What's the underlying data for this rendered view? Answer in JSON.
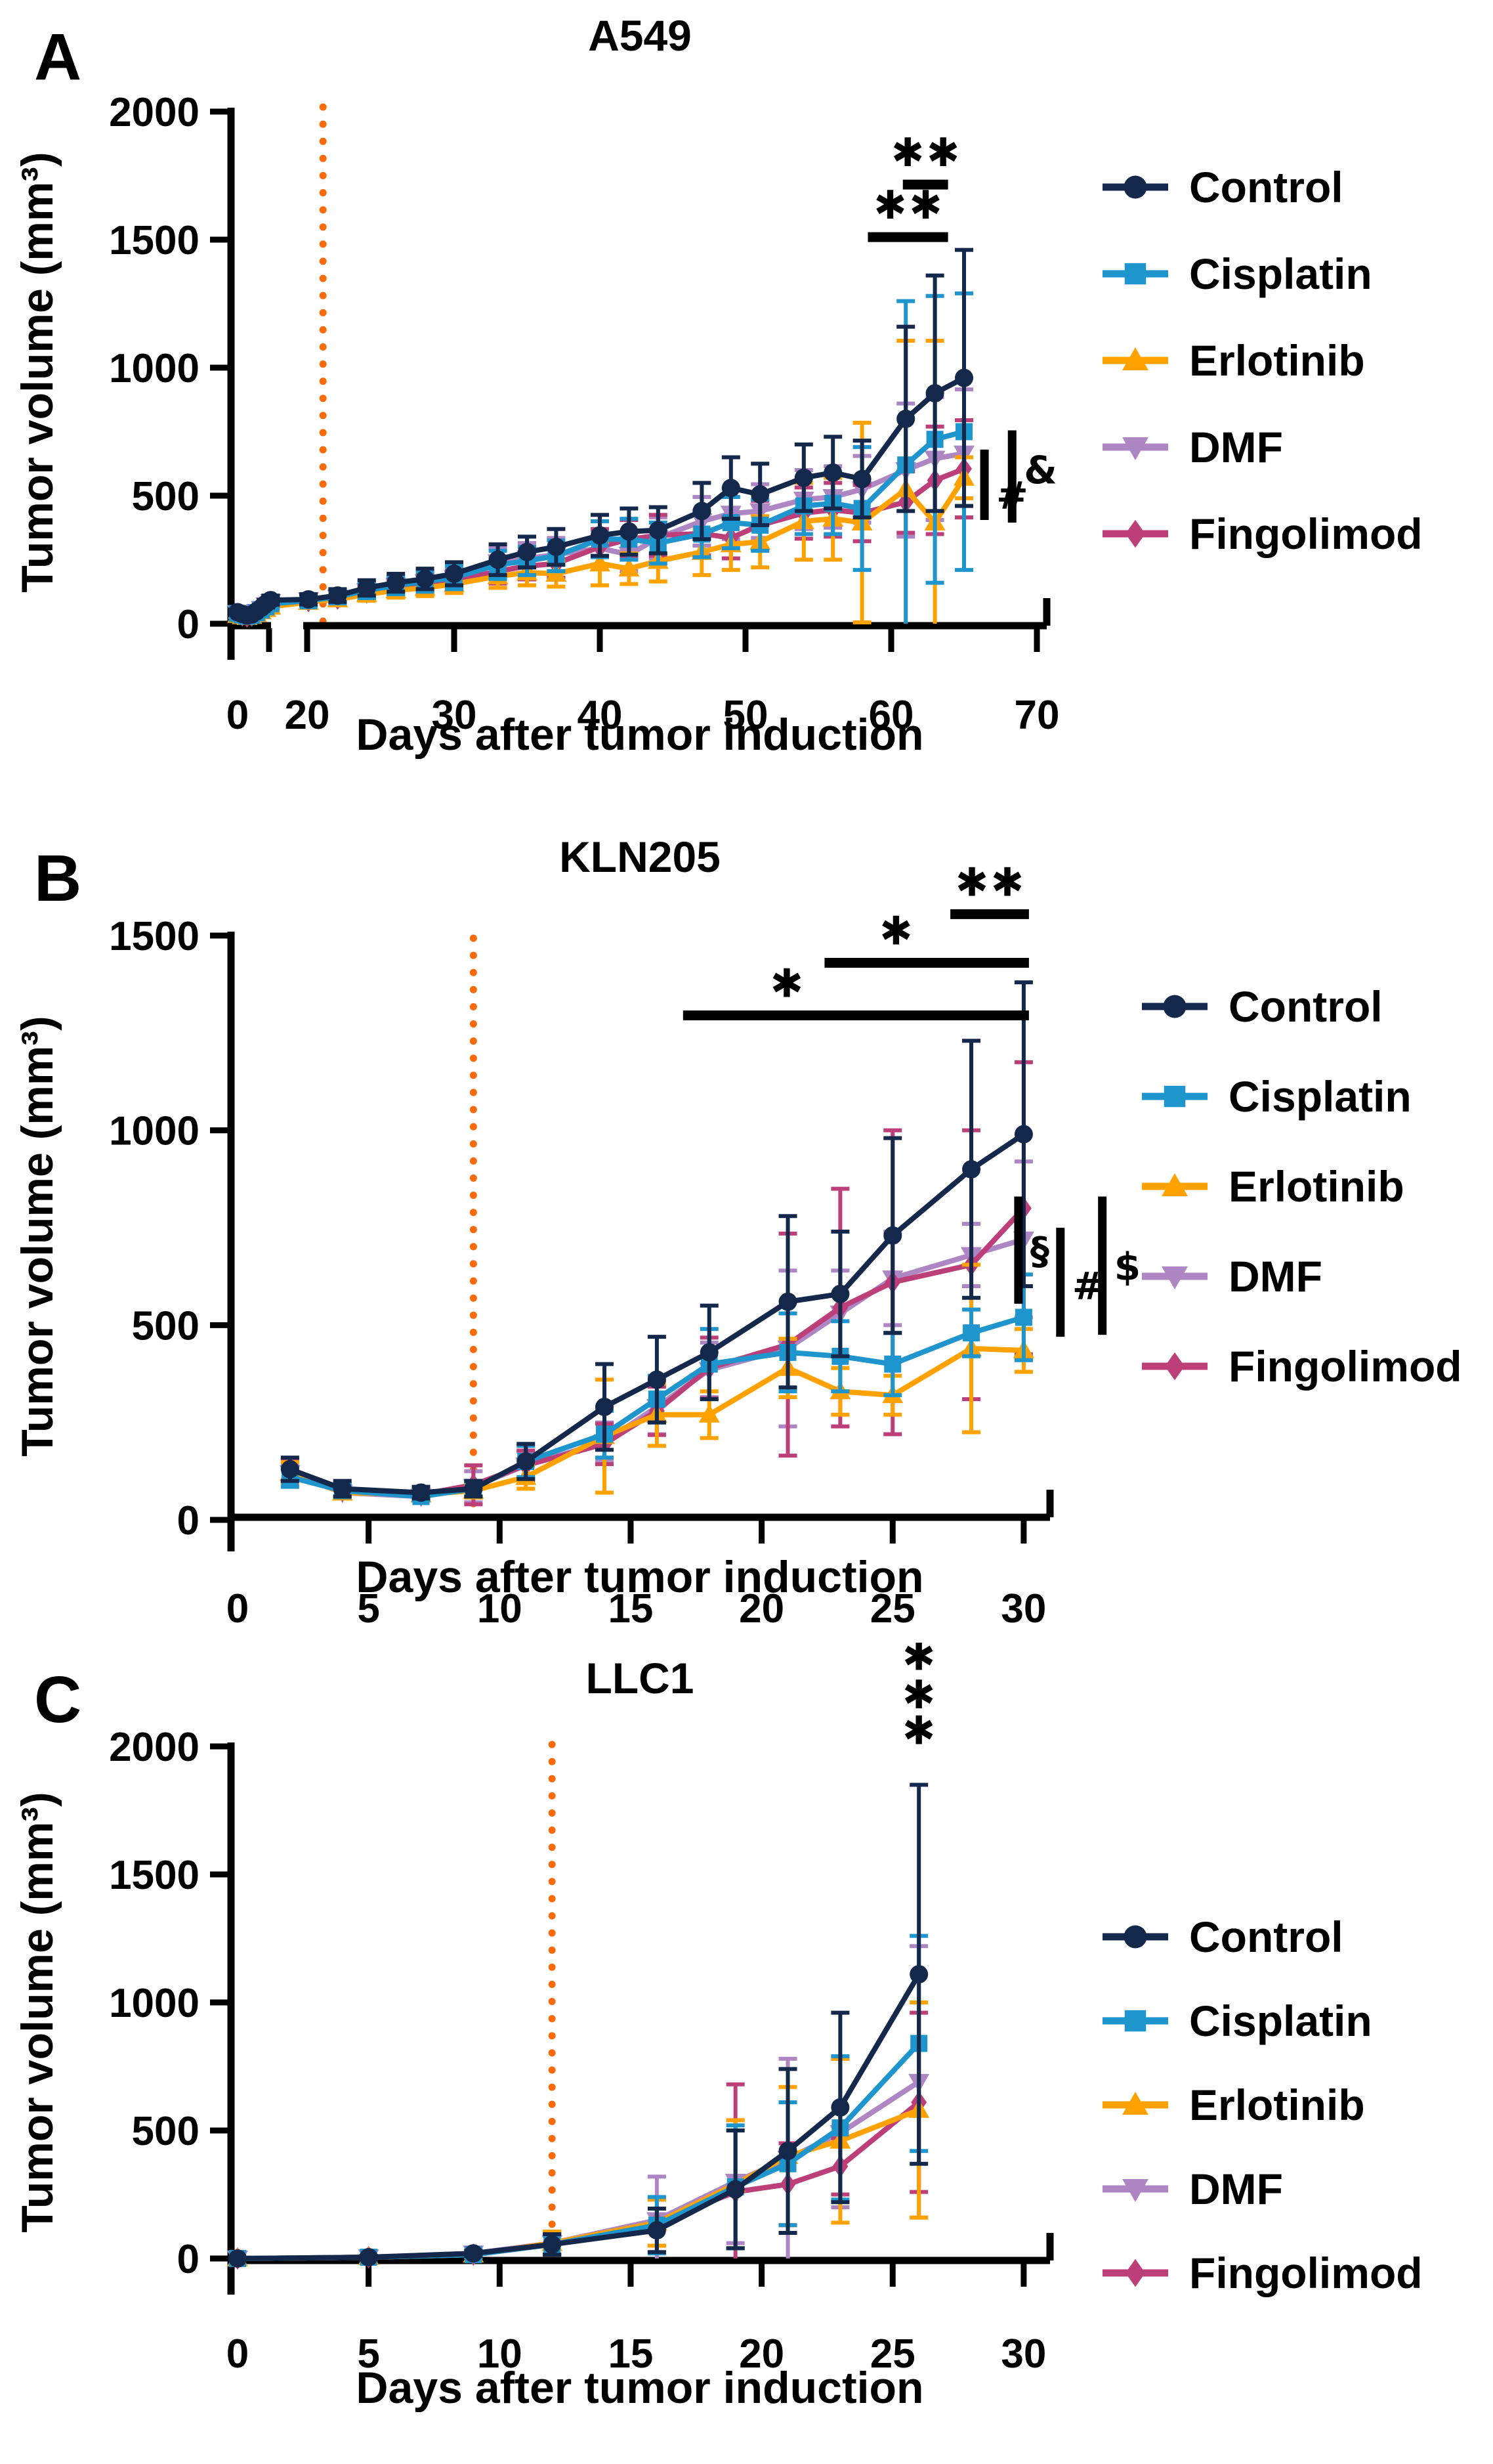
{
  "figure": {
    "star_glyph": "✱",
    "colors": {
      "Control": "#14284B",
      "Cisplatin": "#1E95CD",
      "Erlotinib": "#FFA200",
      "DMF": "#AE86C3",
      "Fingolimod": "#BC3F79",
      "treatment_line": "#FB6A0B",
      "annotation": "#000000"
    },
    "legend": [
      {
        "label": "Control",
        "marker": "circle"
      },
      {
        "label": "Cisplatin",
        "marker": "square"
      },
      {
        "label": "Erlotinib",
        "marker": "triangle-up"
      },
      {
        "label": "DMF",
        "marker": "triangle-down"
      },
      {
        "label": "Fingolimod",
        "marker": "diamond"
      }
    ]
  },
  "chart_data": [
    {
      "type": "line",
      "panel_label": "A",
      "title": "A549",
      "xlabel": "Days after tumor induction",
      "ylabel": "Tumor volume (mm³)",
      "ylim": [
        0,
        2000
      ],
      "yticks": [
        0,
        500,
        1000,
        1500,
        2000
      ],
      "xticks": [
        0,
        20,
        30,
        40,
        50,
        60,
        70
      ],
      "axis_break": {
        "after_day": 8,
        "resume_day": 20
      },
      "treatment_line_day": 21,
      "grid": false,
      "legend_position": "right",
      "series": [
        {
          "name": "Control",
          "marker": "circle",
          "x": [
            0,
            1,
            2,
            3,
            4,
            5,
            6,
            7,
            20,
            22,
            24,
            26,
            28,
            30,
            33,
            35,
            37,
            40,
            42,
            44,
            47,
            49,
            51,
            54,
            56,
            58,
            61,
            63,
            65
          ],
          "y": [
            45,
            38,
            32,
            36,
            48,
            62,
            78,
            92,
            95,
            110,
            140,
            160,
            175,
            195,
            250,
            280,
            300,
            345,
            360,
            365,
            440,
            530,
            505,
            570,
            590,
            565,
            800,
            900,
            960
          ],
          "err": [
            10,
            8,
            8,
            9,
            10,
            12,
            15,
            18,
            20,
            25,
            30,
            35,
            40,
            45,
            60,
            60,
            70,
            80,
            90,
            90,
            110,
            120,
            120,
            130,
            140,
            150,
            360,
            460,
            500
          ]
        },
        {
          "name": "Cisplatin",
          "marker": "square",
          "x": [
            0,
            1,
            2,
            3,
            4,
            5,
            6,
            7,
            20,
            22,
            24,
            26,
            28,
            30,
            33,
            35,
            37,
            40,
            42,
            44,
            47,
            49,
            51,
            54,
            56,
            58,
            61,
            63,
            65
          ],
          "y": [
            40,
            34,
            29,
            33,
            43,
            54,
            66,
            78,
            90,
            105,
            130,
            150,
            165,
            180,
            230,
            245,
            265,
            330,
            330,
            315,
            350,
            395,
            385,
            460,
            470,
            450,
            620,
            720,
            750
          ],
          "err": [
            9,
            8,
            7,
            8,
            9,
            11,
            13,
            16,
            20,
            25,
            30,
            35,
            40,
            45,
            55,
            55,
            60,
            70,
            80,
            80,
            90,
            100,
            100,
            110,
            120,
            240,
            640,
            560,
            540
          ]
        },
        {
          "name": "Erlotinib",
          "marker": "triangle-up",
          "x": [
            0,
            1,
            2,
            3,
            4,
            5,
            6,
            7,
            20,
            22,
            24,
            26,
            28,
            30,
            33,
            35,
            37,
            40,
            42,
            44,
            47,
            49,
            51,
            54,
            56,
            58,
            61,
            63,
            65
          ],
          "y": [
            34,
            29,
            26,
            30,
            38,
            48,
            57,
            66,
            85,
            95,
            115,
            130,
            140,
            155,
            185,
            200,
            195,
            235,
            215,
            245,
            280,
            310,
            320,
            400,
            410,
            395,
            525,
            395,
            570
          ],
          "err": [
            8,
            7,
            6,
            7,
            8,
            10,
            12,
            14,
            18,
            22,
            25,
            28,
            32,
            35,
            45,
            50,
            50,
            85,
            60,
            80,
            90,
            100,
            100,
            150,
            160,
            390,
            580,
            710,
            80
          ]
        },
        {
          "name": "DMF",
          "marker": "triangle-down",
          "x": [
            0,
            1,
            2,
            3,
            4,
            5,
            6,
            7,
            20,
            22,
            24,
            26,
            28,
            30,
            33,
            35,
            37,
            40,
            42,
            44,
            47,
            49,
            51,
            54,
            56,
            58,
            61,
            63,
            65
          ],
          "y": [
            42,
            36,
            30,
            35,
            46,
            58,
            72,
            85,
            92,
            102,
            128,
            148,
            162,
            178,
            240,
            255,
            270,
            295,
            270,
            335,
            400,
            430,
            440,
            485,
            495,
            525,
            600,
            645,
            665
          ],
          "err": [
            9,
            8,
            7,
            8,
            9,
            11,
            14,
            17,
            20,
            22,
            28,
            32,
            36,
            40,
            55,
            60,
            65,
            70,
            65,
            80,
            95,
            100,
            105,
            115,
            120,
            130,
            260,
            240,
            250
          ]
        },
        {
          "name": "Fingolimod",
          "marker": "diamond",
          "x": [
            0,
            1,
            2,
            3,
            4,
            5,
            6,
            7,
            20,
            22,
            24,
            26,
            28,
            30,
            33,
            35,
            37,
            40,
            42,
            44,
            47,
            49,
            51,
            54,
            56,
            58,
            61,
            63,
            65
          ],
          "y": [
            38,
            32,
            28,
            31,
            41,
            51,
            62,
            73,
            88,
            98,
            122,
            142,
            158,
            168,
            205,
            225,
            235,
            300,
            330,
            345,
            352,
            335,
            385,
            432,
            445,
            432,
            475,
            560,
            605
          ],
          "err": [
            8,
            7,
            6,
            7,
            8,
            10,
            12,
            15,
            18,
            22,
            26,
            30,
            34,
            38,
            48,
            52,
            55,
            70,
            75,
            80,
            85,
            80,
            95,
            100,
            105,
            110,
            120,
            210,
            190
          ]
        }
      ],
      "significance": {
        "brackets": [
          {
            "x1": 60.8,
            "x2": 63.9,
            "y": 1715,
            "stars": [
              "Cisplatin",
              "DMF"
            ],
            "star_frac": 0.5
          },
          {
            "x1": 58.4,
            "x2": 63.9,
            "y": 1510,
            "stars": [
              "Erlotinib",
              "Fingolimod"
            ],
            "star_frac": 0.5
          }
        ],
        "side_bars": [
          {
            "symbol": "#",
            "x": 66.4,
            "y1": 405,
            "y2": 680,
            "label_y": 500
          },
          {
            "symbol": "&",
            "x": 68.3,
            "y1": 395,
            "y2": 755,
            "label_y": 600
          }
        ],
        "star_stack": null
      }
    },
    {
      "type": "line",
      "panel_label": "B",
      "title": "KLN205",
      "xlabel": "Days after tumor induction",
      "ylabel": "Tumor volume (mm³)",
      "ylim": [
        0,
        1500
      ],
      "yticks": [
        0,
        500,
        1000,
        1500
      ],
      "xticks": [
        0,
        5,
        10,
        15,
        20,
        25,
        30
      ],
      "axis_break": null,
      "treatment_line_day": 9,
      "grid": false,
      "legend_position": "right",
      "series": [
        {
          "name": "Control",
          "marker": "circle",
          "x": [
            2,
            4,
            7,
            9,
            11,
            14,
            16,
            18,
            21,
            23,
            25,
            28,
            30
          ],
          "y": [
            130,
            80,
            70,
            80,
            150,
            290,
            360,
            430,
            560,
            580,
            730,
            900,
            990
          ],
          "err": [
            30,
            20,
            15,
            20,
            45,
            110,
            110,
            120,
            220,
            160,
            250,
            330,
            390
          ]
        },
        {
          "name": "Cisplatin",
          "marker": "square",
          "x": [
            2,
            4,
            7,
            9,
            11,
            14,
            16,
            18,
            21,
            23,
            25,
            28,
            30
          ],
          "y": [
            110,
            75,
            60,
            80,
            150,
            220,
            310,
            400,
            430,
            420,
            400,
            480,
            520
          ],
          "err": [
            25,
            15,
            10,
            20,
            40,
            60,
            60,
            90,
            100,
            90,
            80,
            60,
            110
          ]
        },
        {
          "name": "Erlotinib",
          "marker": "triangle-up",
          "x": [
            2,
            4,
            7,
            9,
            11,
            14,
            16,
            18,
            21,
            23,
            25,
            28,
            30
          ],
          "y": [
            120,
            70,
            65,
            75,
            110,
            215,
            270,
            270,
            390,
            330,
            320,
            440,
            435
          ],
          "err": [
            28,
            15,
            12,
            18,
            30,
            145,
            80,
            60,
            75,
            60,
            50,
            215,
            55
          ]
        },
        {
          "name": "DMF",
          "marker": "triangle-down",
          "x": [
            2,
            4,
            7,
            9,
            11,
            14,
            16,
            18,
            21,
            23,
            25,
            28,
            30
          ],
          "y": [
            120,
            70,
            60,
            85,
            140,
            200,
            290,
            385,
            440,
            530,
            620,
            680,
            720
          ],
          "err": [
            25,
            15,
            10,
            40,
            35,
            50,
            70,
            70,
            200,
            110,
            120,
            80,
            200
          ]
        },
        {
          "name": "Fingolimod",
          "marker": "diamond",
          "x": [
            2,
            4,
            7,
            9,
            11,
            14,
            16,
            18,
            21,
            23,
            25,
            28,
            30
          ],
          "y": [
            125,
            75,
            65,
            90,
            140,
            195,
            280,
            390,
            450,
            545,
            610,
            655,
            800
          ],
          "err": [
            30,
            18,
            12,
            50,
            38,
            52,
            62,
            78,
            285,
            305,
            390,
            345,
            375
          ]
        }
      ],
      "significance": {
        "brackets": [
          {
            "x1": 27.2,
            "x2": 30.2,
            "y": 1555,
            "stars": [
              "DMF",
              "Fingolimod"
            ],
            "star_frac": 0.5
          },
          {
            "x1": 22.4,
            "x2": 30.2,
            "y": 1430,
            "stars": [
              "Cisplatin"
            ],
            "star_frac": 0.35
          },
          {
            "x1": 17.0,
            "x2": 30.2,
            "y": 1295,
            "stars": [
              "Erlotinib"
            ],
            "star_frac": 0.3
          }
        ],
        "side_bars": [
          {
            "symbol": "§",
            "x": 29.8,
            "y1": 555,
            "y2": 830,
            "label_y": 690
          },
          {
            "symbol": "#",
            "x": 31.4,
            "y1": 470,
            "y2": 750,
            "label_y": 600
          },
          {
            "symbol": "$",
            "x": 33.0,
            "y1": 475,
            "y2": 830,
            "label_y": 650
          }
        ],
        "star_stack": null
      }
    },
    {
      "type": "line",
      "panel_label": "C",
      "title": "LLC1",
      "xlabel": "Days after tumor induction",
      "ylabel": "Tumor volume (mm³)",
      "ylim": [
        0,
        2000
      ],
      "yticks": [
        0,
        500,
        1000,
        1500,
        2000
      ],
      "xticks": [
        0,
        5,
        10,
        15,
        20,
        25,
        30
      ],
      "axis_break": null,
      "treatment_line_day": 12,
      "grid": false,
      "legend_position": "right",
      "series": [
        {
          "name": "Control",
          "marker": "circle",
          "x": [
            0,
            5,
            9,
            12,
            16,
            19,
            21,
            23,
            26
          ],
          "y": [
            0,
            5,
            20,
            55,
            110,
            270,
            420,
            590,
            1110
          ],
          "err": [
            0,
            5,
            10,
            40,
            85,
            230,
            320,
            370,
            740
          ]
        },
        {
          "name": "Cisplatin",
          "marker": "square",
          "x": [
            0,
            5,
            9,
            12,
            16,
            19,
            21,
            23,
            26
          ],
          "y": [
            0,
            5,
            15,
            55,
            130,
            280,
            370,
            510,
            840
          ],
          "err": [
            0,
            5,
            10,
            40,
            110,
            240,
            240,
            280,
            420
          ]
        },
        {
          "name": "Erlotinib",
          "marker": "triangle-up",
          "x": [
            0,
            5,
            9,
            12,
            16,
            19,
            21,
            23,
            26
          ],
          "y": [
            0,
            5,
            15,
            60,
            140,
            290,
            400,
            460,
            580
          ],
          "err": [
            0,
            5,
            10,
            45,
            90,
            250,
            270,
            320,
            420
          ]
        },
        {
          "name": "DMF",
          "marker": "triangle-down",
          "x": [
            0,
            5,
            9,
            12,
            16,
            19,
            21,
            23,
            26
          ],
          "y": [
            0,
            5,
            20,
            60,
            150,
            300,
            390,
            490,
            690
          ],
          "err": [
            0,
            5,
            10,
            45,
            170,
            240,
            390,
            290,
            530
          ]
        },
        {
          "name": "Fingolimod",
          "marker": "diamond",
          "x": [
            0,
            5,
            9,
            12,
            16,
            19,
            21,
            23,
            26
          ],
          "y": [
            0,
            5,
            15,
            55,
            140,
            260,
            290,
            360,
            610
          ],
          "err": [
            0,
            5,
            10,
            40,
            90,
            420,
            160,
            110,
            350
          ]
        }
      ],
      "significance": {
        "brackets": [],
        "side_bars": [],
        "star_stack": {
          "x": 26,
          "stars": [
            {
              "series": "Erlotinib",
              "y": 2350
            },
            {
              "series": "DMF",
              "y": 2200
            },
            {
              "series": "Fingolimod",
              "y": 2060
            }
          ]
        }
      }
    }
  ]
}
